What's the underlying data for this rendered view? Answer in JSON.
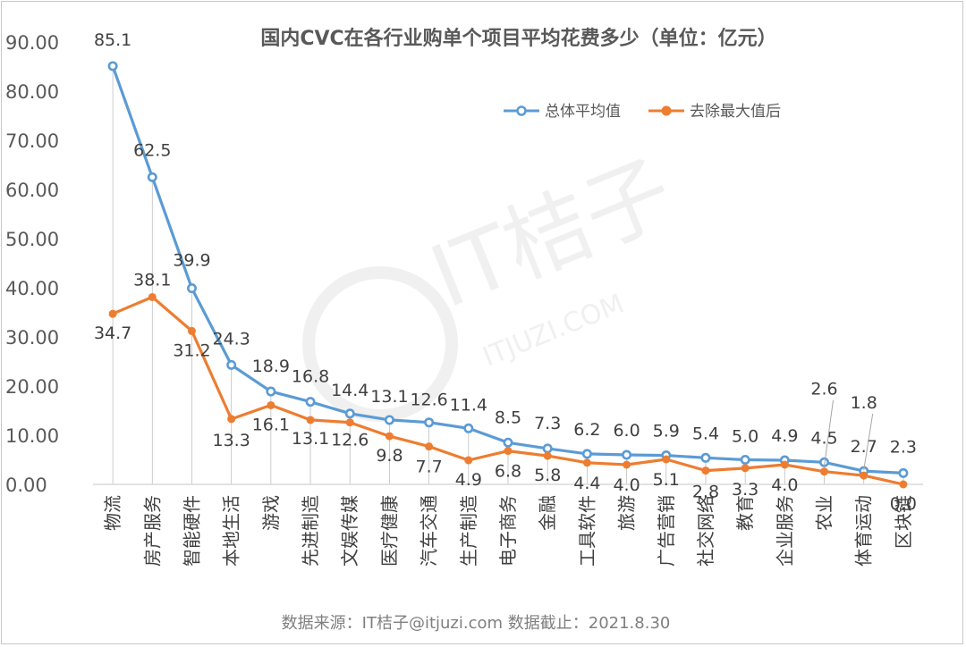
{
  "chart_data": {
    "type": "line",
    "title": "国内CVC在各行业购单个项目平均花费多少（单位：亿元）",
    "categories": [
      "物流",
      "房产服务",
      "智能硬件",
      "本地生活",
      "游戏",
      "先进制造",
      "文娱传媒",
      "医疗健康",
      "汽车交通",
      "生产制造",
      "电子商务",
      "金融",
      "工具软件",
      "旅游",
      "广告营销",
      "社交网络",
      "教育",
      "企业服务",
      "农业",
      "体育运动",
      "区块链"
    ],
    "ylim": [
      0,
      90
    ],
    "yticks": [
      "0.00",
      "10.00",
      "20.00",
      "30.00",
      "40.00",
      "50.00",
      "60.00",
      "70.00",
      "80.00",
      "90.00"
    ],
    "series": [
      {
        "name": "总体平均值",
        "color": "#5b9bd5",
        "values": [
          85.1,
          62.5,
          39.9,
          24.3,
          18.9,
          16.8,
          14.4,
          13.1,
          12.6,
          11.4,
          8.5,
          7.3,
          6.2,
          6.0,
          5.9,
          5.4,
          5.0,
          4.9,
          4.5,
          2.7,
          2.3
        ],
        "labels": [
          "85.1",
          "62.5",
          "39.9",
          "24.3",
          "18.9",
          "16.8",
          "14.4",
          "13.1",
          "12.6",
          "11.4",
          "8.5",
          "7.3",
          "6.2",
          "6.0",
          "5.9",
          "5.4",
          "5.0",
          "4.9",
          "4.5",
          "2.7",
          "2.3"
        ]
      },
      {
        "name": "去除最大值后",
        "color": "#ed7d31",
        "values": [
          34.7,
          38.1,
          31.2,
          13.3,
          16.1,
          13.1,
          12.6,
          9.8,
          7.7,
          4.9,
          6.8,
          5.8,
          4.4,
          4.0,
          5.1,
          2.8,
          3.3,
          4.0,
          2.6,
          1.8,
          0.0
        ],
        "labels": [
          "34.7",
          "38.1",
          "31.2",
          "13.3",
          "16.1",
          "13.1",
          "12.6",
          "9.8",
          "7.7",
          "4.9",
          "6.8",
          "5.8",
          "4.4",
          "4.0",
          "5.1",
          "2.8",
          "3.3",
          "4.0",
          "2.6",
          "1.8",
          "0.0"
        ]
      }
    ],
    "legend_position": "top-right",
    "grid": false
  },
  "watermark": {
    "text": "IT桔子",
    "subtext": "ITJUZI.COM"
  },
  "source_note": "数据来源：IT桔子@itjuzi.com  数据截止：2021.8.30"
}
